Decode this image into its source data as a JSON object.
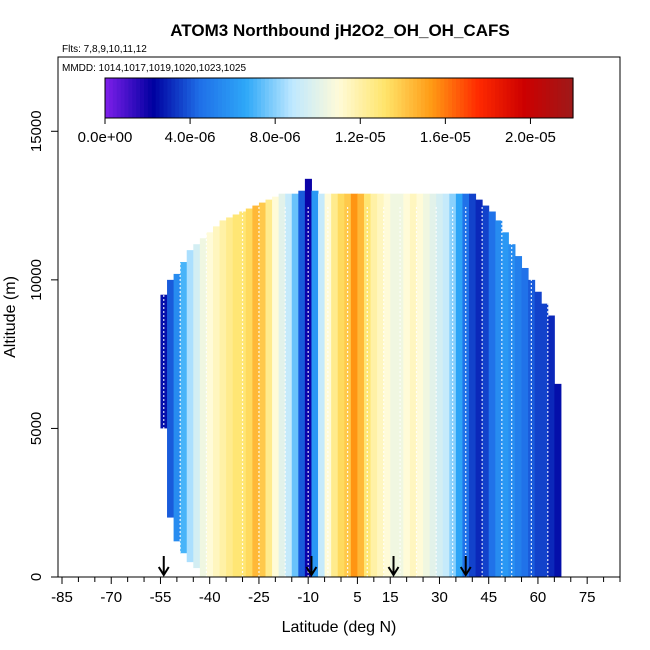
{
  "chart_data": {
    "type": "heatmap",
    "title": "ATOM3 Northbound jH2O2_OH_OH_CAFS",
    "flights_label": "Flts: 7,8,9,10,11,12",
    "dates_label": "MMDD: 1014,1017,1019,1020,1023,1025",
    "xlabel": "Latitude (deg N)",
    "ylabel": "Altitude (m)",
    "xlim": [
      -85,
      85
    ],
    "ylim": [
      0,
      17500
    ],
    "x_ticks": [
      -85,
      -70,
      -55,
      -40,
      -25,
      -10,
      5,
      15,
      30,
      45,
      60,
      75
    ],
    "x_tick_labels": [
      "-85",
      "-70",
      "-55",
      "-40",
      "-25",
      "-10",
      "5",
      "15",
      "30",
      "45",
      "60",
      "75"
    ],
    "y_ticks": [
      0,
      5000,
      10000,
      15000
    ],
    "y_tick_labels": [
      "0",
      "5000",
      "10000",
      "15000"
    ],
    "colorbar": {
      "min": 0,
      "max": 2.2e-05,
      "tick_values": [
        0,
        4e-06,
        8e-06,
        1.2e-05,
        1.6e-05,
        2e-05
      ],
      "tick_labels": [
        "0.0e+00",
        "4.0e-06",
        "8.0e-06",
        "1.2e-05",
        "1.6e-05",
        "2.0e-05"
      ],
      "colors": [
        "#7a1ee8",
        "#0000a0",
        "#1f6fe8",
        "#2ea8f8",
        "#bfe8ff",
        "#fffbd8",
        "#ffe46a",
        "#ff9a14",
        "#ff2a00",
        "#cc0000",
        "#a01818"
      ]
    },
    "arrow_latitudes": [
      -54,
      -9,
      16,
      38
    ],
    "profile_latitudes": [
      -54,
      -49,
      -41,
      -30,
      -25,
      -17,
      -10,
      -4,
      2,
      8,
      13,
      18,
      23,
      29,
      34,
      38,
      43,
      49,
      52,
      58,
      63
    ],
    "curtain_columns": [
      {
        "lat": -54,
        "top": 9500,
        "bottom": 5000,
        "v": 2.5e-06
      },
      {
        "lat": -52,
        "top": 10000,
        "bottom": 2000,
        "v": 4e-06
      },
      {
        "lat": -50,
        "top": 10200,
        "bottom": 1200,
        "v": 5.5e-06
      },
      {
        "lat": -48,
        "top": 10600,
        "bottom": 800,
        "v": 7e-06
      },
      {
        "lat": -46,
        "top": 11000,
        "bottom": 500,
        "v": 8.5e-06
      },
      {
        "lat": -44,
        "top": 11200,
        "bottom": 300,
        "v": 9.5e-06
      },
      {
        "lat": -42,
        "top": 11400,
        "bottom": 0,
        "v": 1.05e-05
      },
      {
        "lat": -40,
        "top": 11600,
        "bottom": 0,
        "v": 1.1e-05
      },
      {
        "lat": -38,
        "top": 11800,
        "bottom": 0,
        "v": 1.15e-05
      },
      {
        "lat": -36,
        "top": 12000,
        "bottom": 0,
        "v": 1.2e-05
      },
      {
        "lat": -34,
        "top": 12100,
        "bottom": 0,
        "v": 1.25e-05
      },
      {
        "lat": -32,
        "top": 12200,
        "bottom": 0,
        "v": 1.3e-05
      },
      {
        "lat": -30,
        "top": 12300,
        "bottom": 0,
        "v": 1.3e-05
      },
      {
        "lat": -28,
        "top": 12400,
        "bottom": 0,
        "v": 1.35e-05
      },
      {
        "lat": -26,
        "top": 12500,
        "bottom": 0,
        "v": 1.45e-05
      },
      {
        "lat": -24,
        "top": 12600,
        "bottom": 0,
        "v": 1.4e-05
      },
      {
        "lat": -22,
        "top": 12700,
        "bottom": 0,
        "v": 1.25e-05
      },
      {
        "lat": -20,
        "top": 12800,
        "bottom": 0,
        "v": 1.1e-05
      },
      {
        "lat": -18,
        "top": 12900,
        "bottom": 0,
        "v": 1e-05
      },
      {
        "lat": -16,
        "top": 12900,
        "bottom": 0,
        "v": 9e-06
      },
      {
        "lat": -14,
        "top": 12900,
        "bottom": 0,
        "v": 7.5e-06
      },
      {
        "lat": -12,
        "top": 13000,
        "bottom": 0,
        "v": 4e-06
      },
      {
        "lat": -10,
        "top": 13400,
        "bottom": 0,
        "v": 2e-06
      },
      {
        "lat": -8,
        "top": 13000,
        "bottom": 0,
        "v": 6e-06
      },
      {
        "lat": -6,
        "top": 12900,
        "bottom": 0,
        "v": 9e-06
      },
      {
        "lat": -4,
        "top": 12900,
        "bottom": 0,
        "v": 1.1e-05
      },
      {
        "lat": -2,
        "top": 12900,
        "bottom": 0,
        "v": 1.25e-05
      },
      {
        "lat": 0,
        "top": 12900,
        "bottom": 0,
        "v": 1.35e-05
      },
      {
        "lat": 2,
        "top": 12900,
        "bottom": 0,
        "v": 1.4e-05
      },
      {
        "lat": 4,
        "top": 12900,
        "bottom": 0,
        "v": 1.55e-05
      },
      {
        "lat": 6,
        "top": 12900,
        "bottom": 0,
        "v": 1.45e-05
      },
      {
        "lat": 8,
        "top": 12900,
        "bottom": 0,
        "v": 1.3e-05
      },
      {
        "lat": 10,
        "top": 12900,
        "bottom": 0,
        "v": 1.2e-05
      },
      {
        "lat": 12,
        "top": 12900,
        "bottom": 0,
        "v": 1.15e-05
      },
      {
        "lat": 14,
        "top": 12900,
        "bottom": 0,
        "v": 1.1e-05
      },
      {
        "lat": 16,
        "top": 12900,
        "bottom": 0,
        "v": 1.05e-05
      },
      {
        "lat": 18,
        "top": 12900,
        "bottom": 0,
        "v": 1.05e-05
      },
      {
        "lat": 20,
        "top": 12900,
        "bottom": 0,
        "v": 1.1e-05
      },
      {
        "lat": 22,
        "top": 12900,
        "bottom": 0,
        "v": 1.15e-05
      },
      {
        "lat": 24,
        "top": 12900,
        "bottom": 0,
        "v": 1.1e-05
      },
      {
        "lat": 26,
        "top": 12900,
        "bottom": 0,
        "v": 1.05e-05
      },
      {
        "lat": 28,
        "top": 12900,
        "bottom": 0,
        "v": 1e-05
      },
      {
        "lat": 30,
        "top": 12900,
        "bottom": 0,
        "v": 9.5e-06
      },
      {
        "lat": 32,
        "top": 12900,
        "bottom": 0,
        "v": 9e-06
      },
      {
        "lat": 34,
        "top": 12900,
        "bottom": 0,
        "v": 8e-06
      },
      {
        "lat": 36,
        "top": 12900,
        "bottom": 0,
        "v": 6.5e-06
      },
      {
        "lat": 38,
        "top": 12900,
        "bottom": 0,
        "v": 4.5e-06
      },
      {
        "lat": 40,
        "top": 12900,
        "bottom": 0,
        "v": 3.5e-06
      },
      {
        "lat": 42,
        "top": 12700,
        "bottom": 0,
        "v": 3e-06
      },
      {
        "lat": 44,
        "top": 12500,
        "bottom": 0,
        "v": 3.5e-06
      },
      {
        "lat": 46,
        "top": 12300,
        "bottom": 0,
        "v": 4.5e-06
      },
      {
        "lat": 48,
        "top": 12000,
        "bottom": 0,
        "v": 5.5e-06
      },
      {
        "lat": 50,
        "top": 11600,
        "bottom": 0,
        "v": 6e-06
      },
      {
        "lat": 52,
        "top": 11200,
        "bottom": 0,
        "v": 5.5e-06
      },
      {
        "lat": 54,
        "top": 10800,
        "bottom": 0,
        "v": 5e-06
      },
      {
        "lat": 56,
        "top": 10400,
        "bottom": 0,
        "v": 4.5e-06
      },
      {
        "lat": 58,
        "top": 10000,
        "bottom": 0,
        "v": 4e-06
      },
      {
        "lat": 60,
        "top": 9600,
        "bottom": 0,
        "v": 3.5e-06
      },
      {
        "lat": 62,
        "top": 9200,
        "bottom": 0,
        "v": 3.5e-06
      },
      {
        "lat": 64,
        "top": 8800,
        "bottom": 0,
        "v": 3e-06
      },
      {
        "lat": 66,
        "top": 6500,
        "bottom": 0,
        "v": 2.5e-06
      }
    ]
  }
}
